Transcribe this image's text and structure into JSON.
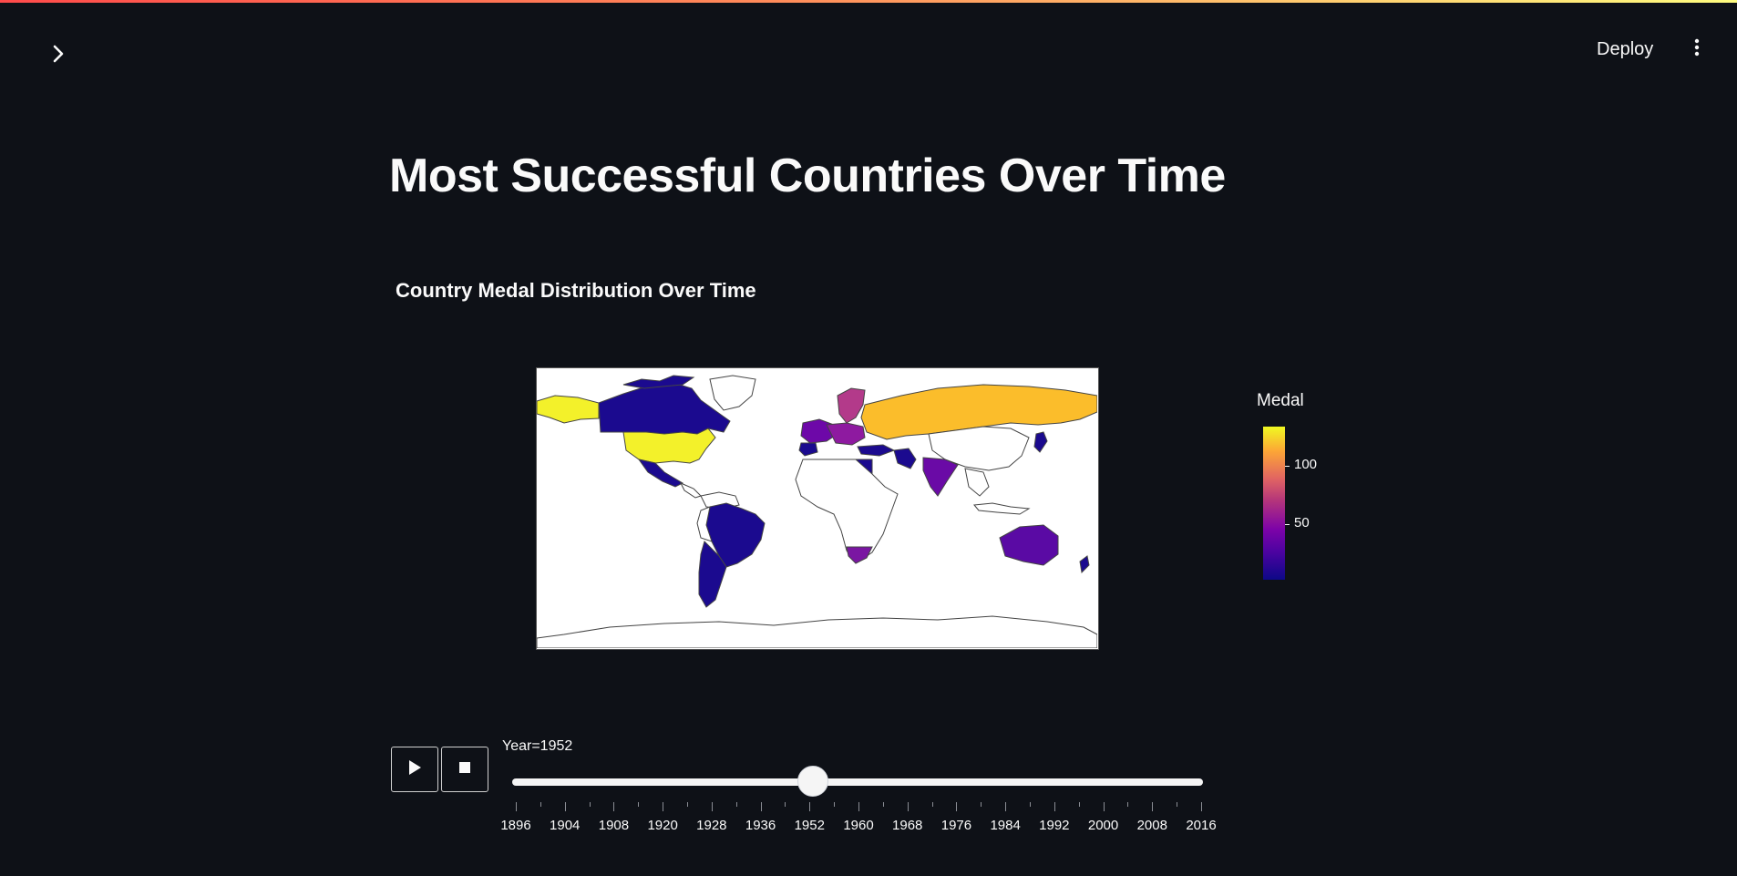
{
  "header": {
    "deploy_label": "Deploy",
    "sidebar_icon": "chevron-right-icon",
    "menu_icon": "kebab-menu-icon"
  },
  "page": {
    "title": "Most Successful Countries Over Time"
  },
  "chart": {
    "subtitle": "Country Medal Distribution Over Time",
    "colorbar_title": "Medal",
    "colorbar_ticks": [
      "100",
      "50"
    ]
  },
  "chart_data": {
    "type": "choropleth",
    "title": "Country Medal Distribution Over Time",
    "color_label": "Medal",
    "colorscale": [
      "#0d0887",
      "#7d03a8",
      "#e16462",
      "#fca636",
      "#f0f921"
    ],
    "color_range": [
      0,
      130
    ],
    "frame_year": 1952,
    "regions": [
      {
        "name": "United States",
        "value": 128
      },
      {
        "name": "Soviet Union",
        "value": 117
      },
      {
        "name": "Sweden",
        "value": 60
      },
      {
        "name": "Germany",
        "value": 44
      },
      {
        "name": "Italy",
        "value": 40
      },
      {
        "name": "Hungary",
        "value": 42
      },
      {
        "name": "Finland",
        "value": 40
      },
      {
        "name": "India",
        "value": 25
      },
      {
        "name": "Australia",
        "value": 20
      },
      {
        "name": "South Africa",
        "value": 18
      },
      {
        "name": "Canada",
        "value": 5
      },
      {
        "name": "Brazil",
        "value": 5
      },
      {
        "name": "Argentina",
        "value": 5
      },
      {
        "name": "Mexico",
        "value": 5
      },
      {
        "name": "Japan",
        "value": 5
      },
      {
        "name": "Egypt",
        "value": 5
      },
      {
        "name": "Turkey",
        "value": 5
      },
      {
        "name": "Iran",
        "value": 5
      }
    ]
  },
  "controls": {
    "play_icon": "play-icon",
    "stop_icon": "stop-icon",
    "slider_label": "Year=1952",
    "current_year": 1952,
    "slider_ticks": [
      "1896",
      "1904",
      "1908",
      "1920",
      "1928",
      "1936",
      "1952",
      "1960",
      "1968",
      "1976",
      "1984",
      "1992",
      "2000",
      "2008",
      "2016"
    ]
  }
}
